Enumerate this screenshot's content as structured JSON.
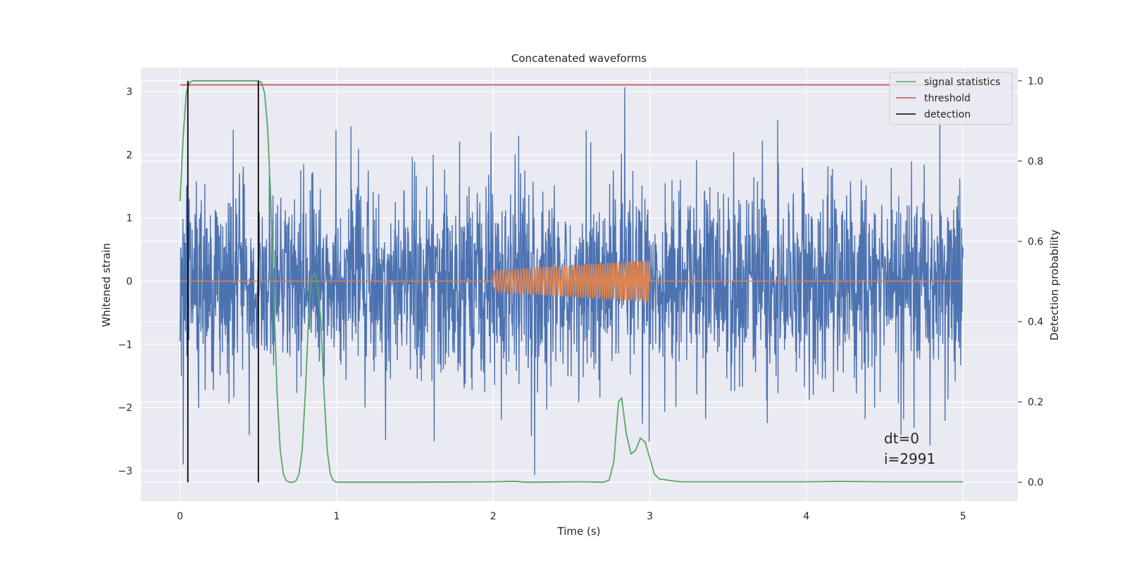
{
  "chart_data": {
    "type": "line",
    "title": "Concatenated waveforms",
    "xlabel": "Time (s)",
    "ylabel": "Whitened strain",
    "ylabel_right": "Detection probability",
    "xlim": [
      -0.25,
      5.35
    ],
    "ylim": [
      -3.48,
      3.38
    ],
    "ylim_right": [
      -0.047,
      1.033
    ],
    "x_ticks": [
      0,
      1,
      2,
      3,
      4,
      5
    ],
    "y_ticks": [
      -3,
      -2,
      -1,
      0,
      1,
      2,
      3
    ],
    "y_ticks_right": [
      0.0,
      0.2,
      0.4,
      0.6,
      0.8,
      1.0
    ],
    "y_tick_labels": [
      "−3",
      "−2",
      "−1",
      "0",
      "1",
      "2",
      "3"
    ],
    "y_tick_labels_right": [
      "0.0",
      "0.2",
      "0.4",
      "0.6",
      "0.8",
      "1.0"
    ],
    "grid": true,
    "legend_position": "top-right",
    "series": [
      {
        "name": "",
        "axis": "left",
        "color": "#4c72b0",
        "kind": "noise",
        "x_range": [
          0,
          5
        ],
        "envelope": 2.6,
        "peak_max": 3.07,
        "peak_min": -3.07
      },
      {
        "name": "",
        "axis": "left",
        "color": "#dd8452",
        "kind": "chirp",
        "x": [
          0,
          2,
          3,
          5
        ],
        "baseline": 0,
        "chirp_x_range": [
          2.0,
          3.0
        ],
        "chirp_amplitude_start": 0.17,
        "chirp_amplitude_end": 0.33,
        "chirp_cycles": 50
      },
      {
        "name": "signal statistics",
        "axis": "right",
        "color": "#55a868",
        "x": [
          0.0,
          0.02,
          0.04,
          0.06,
          0.08,
          0.1,
          0.15,
          0.2,
          0.3,
          0.4,
          0.5,
          0.52,
          0.54,
          0.56,
          0.58,
          0.6,
          0.62,
          0.64,
          0.66,
          0.68,
          0.7,
          0.72,
          0.74,
          0.76,
          0.78,
          0.8,
          0.82,
          0.84,
          0.86,
          0.88,
          0.9,
          0.92,
          0.94,
          0.96,
          0.98,
          1.0,
          1.05,
          1.2,
          1.5,
          2.0,
          2.1,
          2.15,
          2.2,
          2.3,
          2.5,
          2.6,
          2.7,
          2.74,
          2.77,
          2.8,
          2.82,
          2.85,
          2.88,
          2.91,
          2.94,
          2.97,
          3.0,
          3.03,
          3.06,
          3.1,
          3.15,
          3.2,
          3.3,
          3.5,
          4.0,
          4.2,
          4.5,
          5.0
        ],
        "values": [
          0.7,
          0.86,
          0.97,
          0.995,
          1.0,
          1.0,
          1.0,
          1.0,
          1.0,
          1.0,
          1.0,
          0.995,
          0.97,
          0.88,
          0.7,
          0.45,
          0.22,
          0.08,
          0.02,
          0.003,
          0.0,
          0.0,
          0.003,
          0.02,
          0.08,
          0.22,
          0.4,
          0.51,
          0.52,
          0.49,
          0.4,
          0.22,
          0.08,
          0.02,
          0.004,
          0.0,
          0.0,
          0.0,
          0.0,
          0.001,
          0.002,
          0.002,
          0.0,
          0.0,
          0.001,
          0.001,
          0.0,
          0.005,
          0.05,
          0.2,
          0.21,
          0.12,
          0.07,
          0.08,
          0.11,
          0.1,
          0.06,
          0.02,
          0.008,
          0.006,
          0.003,
          0.001,
          0.001,
          0.001,
          0.001,
          0.002,
          0.001,
          0.001
        ]
      },
      {
        "name": "threshold",
        "axis": "right",
        "color": "#c44e52",
        "x": [
          0,
          5
        ],
        "values": [
          0.99,
          0.99
        ]
      },
      {
        "name": "detection",
        "axis": "right",
        "color": "#000000",
        "kind": "vlines",
        "x": [
          0.05,
          0.5
        ],
        "y_range": [
          0.0,
          1.0
        ]
      }
    ],
    "annotations": [
      "dt=0",
      "i=2991"
    ],
    "annotation_position": [
      4.5,
      -2.6
    ]
  }
}
